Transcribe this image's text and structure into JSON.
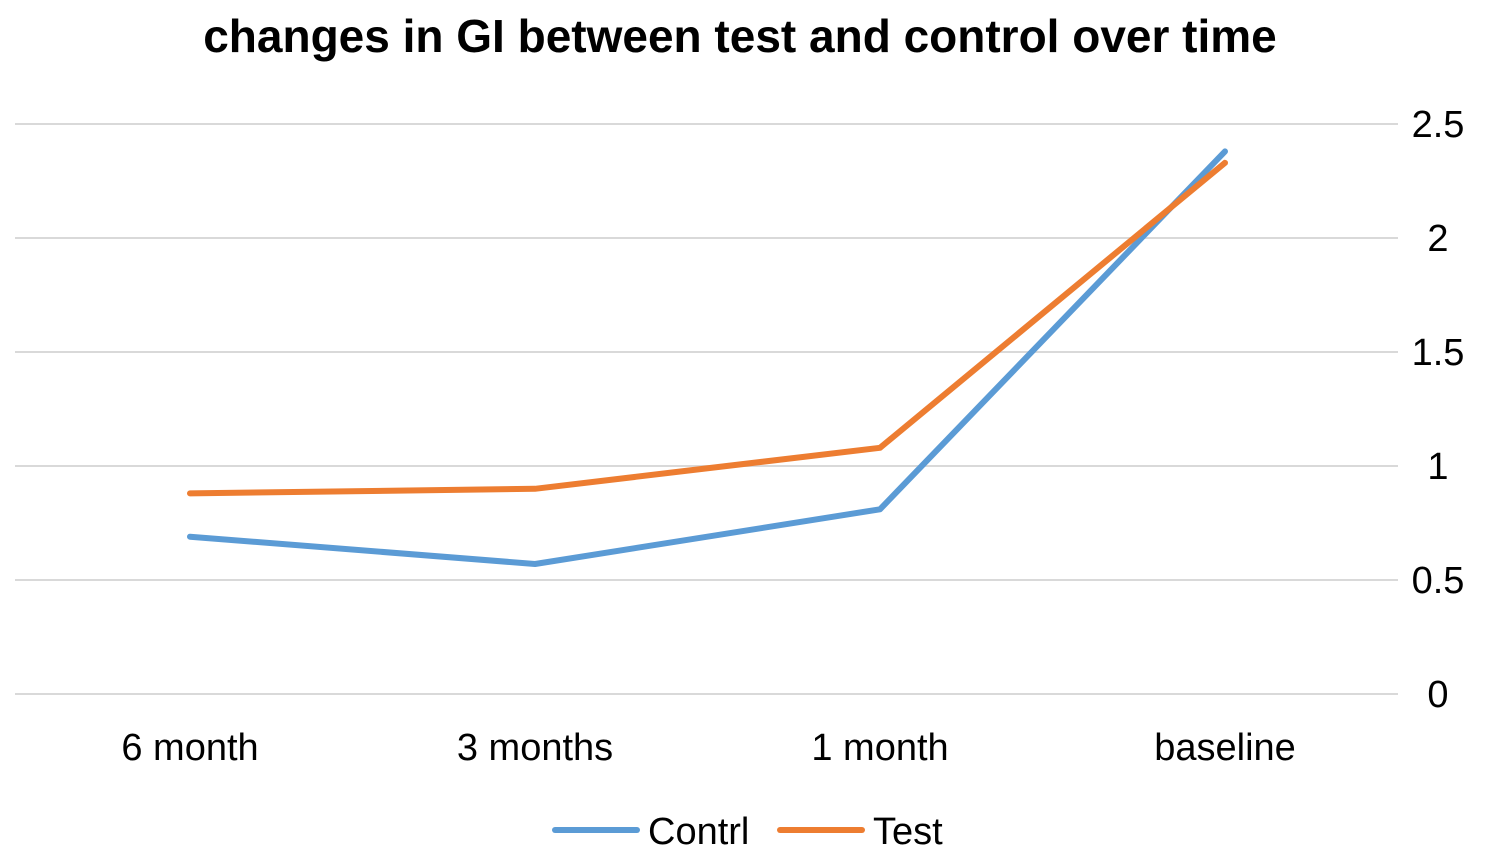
{
  "chart_data": {
    "type": "line",
    "title": "changes in GI between test and control over time",
    "categories": [
      "6 month",
      "3 months",
      "1 month",
      "baseline"
    ],
    "series": [
      {
        "name": "Contrl",
        "color": "#5b9bd5",
        "values": [
          0.69,
          0.57,
          0.81,
          2.38
        ]
      },
      {
        "name": "Test",
        "color": "#ed7d31",
        "values": [
          0.88,
          0.9,
          1.08,
          2.33
        ]
      }
    ],
    "y_ticks": [
      "0",
      "0.5",
      "1",
      "1.5",
      "2",
      "2.5"
    ],
    "ylim": [
      0,
      2.5
    ],
    "y_axis_side": "right",
    "grid": true,
    "legend_position": "bottom"
  }
}
